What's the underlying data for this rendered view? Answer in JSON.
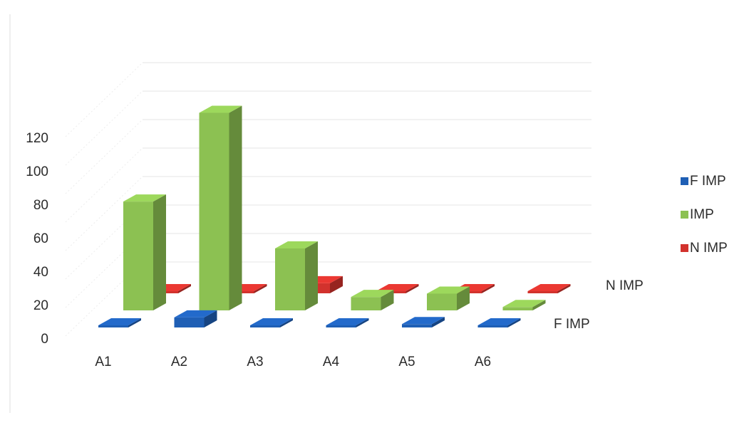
{
  "chart_data": {
    "type": "bar",
    "projection": "3d",
    "categories": [
      "A1",
      "A2",
      "A3",
      "A4",
      "A5",
      "A6"
    ],
    "series_order": [
      "F IMP",
      "IMP",
      "N IMP"
    ],
    "depth_labels": [
      "N IMP",
      "F IMP"
    ],
    "series": [
      {
        "name": "F IMP",
        "color": "#1f5fb5",
        "values": [
          1,
          6,
          1,
          0,
          2,
          0
        ]
      },
      {
        "name": "IMP",
        "color": "#8cc152",
        "values": [
          65,
          118,
          37,
          8,
          10,
          2
        ]
      },
      {
        "name": "N IMP",
        "color": "#d2322d",
        "values": [
          0,
          0,
          6,
          0,
          0,
          0
        ]
      }
    ],
    "yticks": [
      0,
      20,
      40,
      60,
      80,
      100,
      120
    ],
    "ylim": [
      0,
      130
    ],
    "grid": true,
    "legend": "right"
  }
}
